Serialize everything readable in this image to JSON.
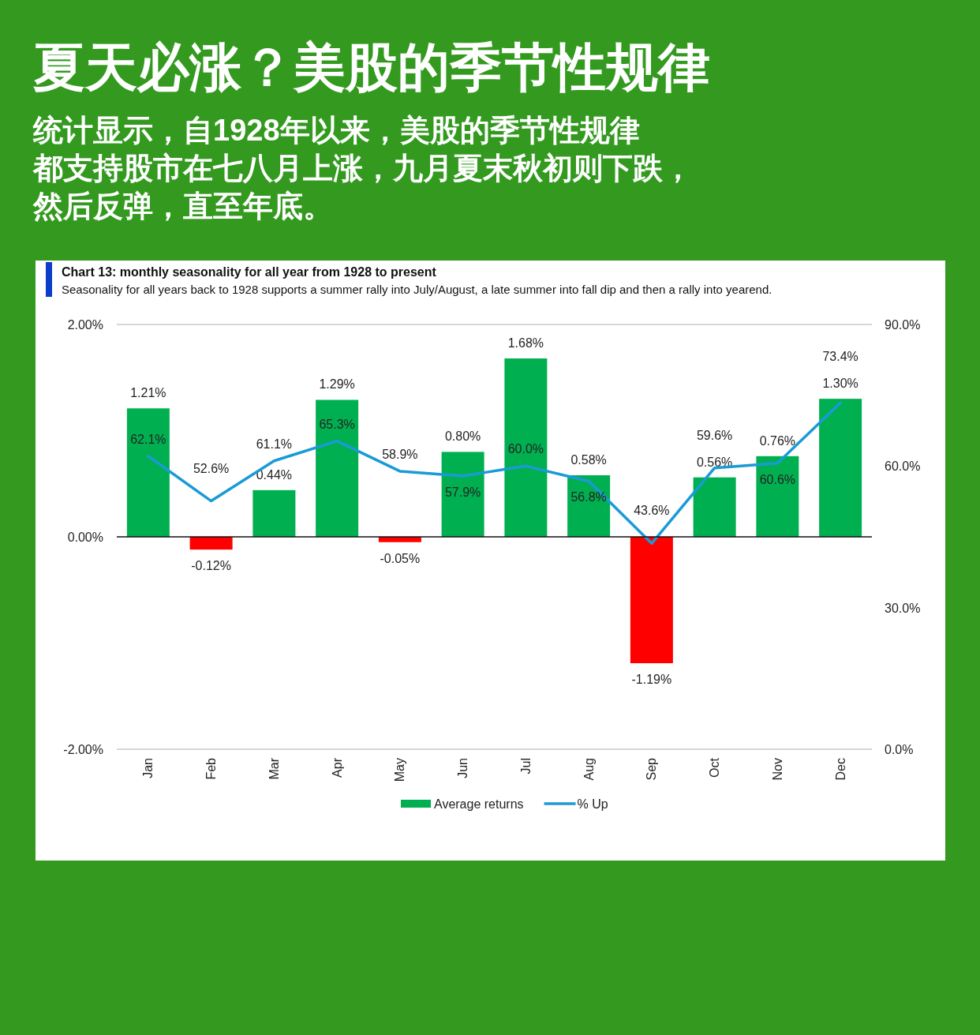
{
  "chart_data": {
    "type": "bar",
    "title": "夏天必涨？美股的季节性规律",
    "subtitle": "统计显示，自1928年以来，美股的季节性规律都支持股市在七八月上涨，九月夏末秋初则下跌，然后反弹，直至年底。",
    "annotations": [
      "Chart 13: monthly seasonality for all year from 1928 to present",
      "Seasonality for all years back to 1928 supports a summer rally into July/August, a late summer into fall dip and then a rally into yearend."
    ],
    "categories": [
      "Jan",
      "Feb",
      "Mar",
      "Apr",
      "May",
      "Jun",
      "Jul",
      "Aug",
      "Sep",
      "Oct",
      "Nov",
      "Dec"
    ],
    "ylim": [
      -2,
      2
    ],
    "yticks": [
      {
        "value": -2,
        "label": "-2.00%"
      },
      {
        "value": 0,
        "label": "0.00%"
      },
      {
        "value": 2,
        "label": "2.00%"
      }
    ],
    "y2lim": [
      0,
      90
    ],
    "y2ticks": [
      {
        "value": 0,
        "label": "0.0%"
      },
      {
        "value": 30,
        "label": "30.0%"
      },
      {
        "value": 60,
        "label": "60.0%"
      },
      {
        "value": 90,
        "label": "90.0%"
      }
    ],
    "grid": "y",
    "legend": "bottom",
    "series": [
      {
        "name": "Average returns",
        "type": "bar",
        "color": "#00b050",
        "colors": [
          "#00b050",
          "#ff0000",
          "#00b050",
          "#00b050",
          "#ff0000",
          "#00b050",
          "#00b050",
          "#00b050",
          "#ff0000",
          "#00b050",
          "#00b050",
          "#00b050"
        ],
        "values": [
          1.21,
          -0.12,
          0.44,
          1.29,
          -0.05,
          0.8,
          1.68,
          0.58,
          -1.19,
          0.56,
          0.76,
          1.3
        ],
        "value_labels": [
          "1.21%",
          "-0.12%",
          "0.44%",
          "1.29%",
          "-0.05%",
          "0.80%",
          "1.68%",
          "0.58%",
          "-1.19%",
          "0.56%",
          "0.76%",
          "1.30%"
        ]
      },
      {
        "name": "% Up",
        "type": "line",
        "axis": "y2",
        "color": "#1a9ad6",
        "values": [
          62.1,
          52.6,
          61.1,
          65.3,
          58.9,
          57.9,
          60.0,
          56.8,
          43.6,
          59.6,
          60.6,
          73.4
        ],
        "value_labels": [
          "62.1%",
          "52.6%",
          "61.1%",
          "65.3%",
          "58.9%",
          "57.9%",
          "60.0%",
          "56.8%",
          "43.6%",
          "59.6%",
          "60.6%",
          "73.4%"
        ]
      }
    ]
  }
}
